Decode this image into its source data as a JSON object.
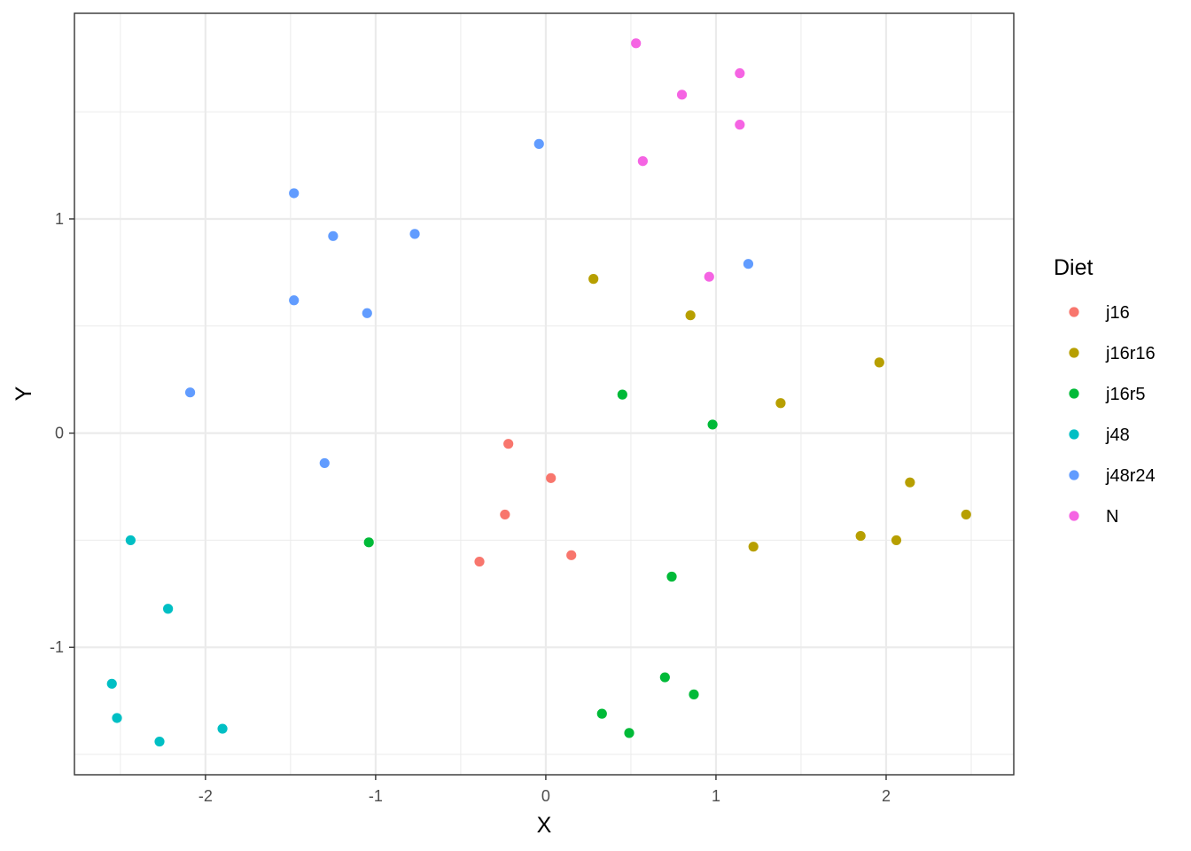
{
  "chart_data": {
    "type": "scatter",
    "title": "",
    "xlabel": "X",
    "ylabel": "Y",
    "xlim": [
      -2.77,
      2.75
    ],
    "ylim": [
      -1.595,
      1.96
    ],
    "x_major_ticks": [
      -2,
      -1,
      0,
      1,
      2
    ],
    "x_tick_labels": [
      "-2",
      "-1",
      "0",
      "1",
      "2"
    ],
    "x_minor_ticks": [
      -2.5,
      -1.5,
      -0.5,
      0.5,
      1.5,
      2.5
    ],
    "y_major_ticks": [
      -1,
      0,
      1
    ],
    "y_tick_labels": [
      "-1",
      "0",
      "1"
    ],
    "y_minor_ticks": [
      -1.5,
      -0.5,
      0.5,
      1.5
    ],
    "grid": true,
    "legend": {
      "title": "Diet",
      "position": "right"
    },
    "series": [
      {
        "name": "j16",
        "color": "#F8766D",
        "points": [
          [
            -0.22,
            -0.05
          ],
          [
            0.03,
            -0.21
          ],
          [
            -0.24,
            -0.38
          ],
          [
            -0.39,
            -0.6
          ],
          [
            0.15,
            -0.57
          ]
        ]
      },
      {
        "name": "j16r16",
        "color": "#B79F00",
        "points": [
          [
            0.28,
            0.72
          ],
          [
            0.85,
            0.55
          ],
          [
            1.96,
            0.33
          ],
          [
            1.38,
            0.14
          ],
          [
            2.14,
            -0.23
          ],
          [
            2.47,
            -0.38
          ],
          [
            1.85,
            -0.48
          ],
          [
            2.06,
            -0.5
          ],
          [
            1.22,
            -0.53
          ]
        ]
      },
      {
        "name": "j16r5",
        "color": "#00BA38",
        "points": [
          [
            0.45,
            0.18
          ],
          [
            0.98,
            0.04
          ],
          [
            -1.04,
            -0.51
          ],
          [
            0.74,
            -0.67
          ],
          [
            0.7,
            -1.14
          ],
          [
            0.87,
            -1.22
          ],
          [
            0.33,
            -1.31
          ],
          [
            0.49,
            -1.4
          ]
        ]
      },
      {
        "name": "j48",
        "color": "#00BFC4",
        "points": [
          [
            -2.44,
            -0.5
          ],
          [
            -2.22,
            -0.82
          ],
          [
            -2.55,
            -1.17
          ],
          [
            -2.52,
            -1.33
          ],
          [
            -1.9,
            -1.38
          ],
          [
            -2.27,
            -1.44
          ]
        ]
      },
      {
        "name": "j48r24",
        "color": "#619CFF",
        "points": [
          [
            -0.04,
            1.35
          ],
          [
            -1.48,
            1.12
          ],
          [
            -1.25,
            0.92
          ],
          [
            -0.77,
            0.93
          ],
          [
            1.19,
            0.79
          ],
          [
            -1.48,
            0.62
          ],
          [
            -1.05,
            0.56
          ],
          [
            -2.09,
            0.19
          ],
          [
            -1.3,
            -0.14
          ]
        ]
      },
      {
        "name": "N",
        "color": "#F564E3",
        "points": [
          [
            0.53,
            1.82
          ],
          [
            1.14,
            1.68
          ],
          [
            0.8,
            1.58
          ],
          [
            1.14,
            1.44
          ],
          [
            0.57,
            1.27
          ],
          [
            0.96,
            0.73
          ]
        ]
      }
    ]
  }
}
